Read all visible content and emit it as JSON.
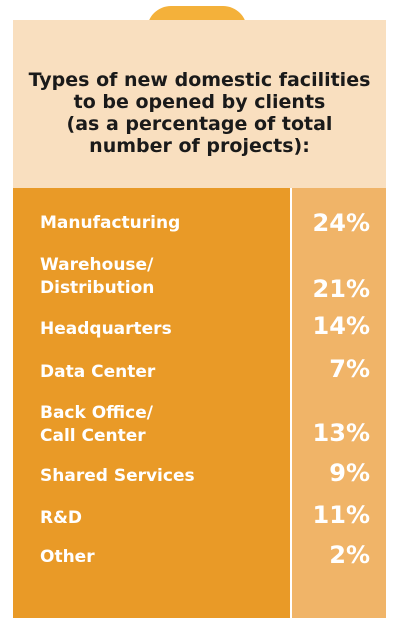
{
  "chart_data": {
    "type": "table",
    "title": "Types of new domestic facilities\nto be opened by clients\n(as a percentage of total\nnumber of projects):",
    "categories": [
      "Manufacturing",
      "Warehouse/\nDistribution",
      "Headquarters",
      "Data Center",
      "Back Office/\nCall Center",
      "Shared Services",
      "R&D",
      "Other"
    ],
    "values": [
      24,
      21,
      14,
      7,
      13,
      9,
      11,
      2
    ],
    "value_labels": [
      "24%",
      "21%",
      "14%",
      "7%",
      "13%",
      "9%",
      "11%",
      "2%"
    ],
    "unit": "%"
  },
  "colors": {
    "tab": "#f4b13a",
    "header_bg": "#f9dfbf",
    "label_column": "#e99a27",
    "value_column": "#f0b468",
    "text_light": "#ffffff",
    "text_dark": "#1a1a1a"
  }
}
